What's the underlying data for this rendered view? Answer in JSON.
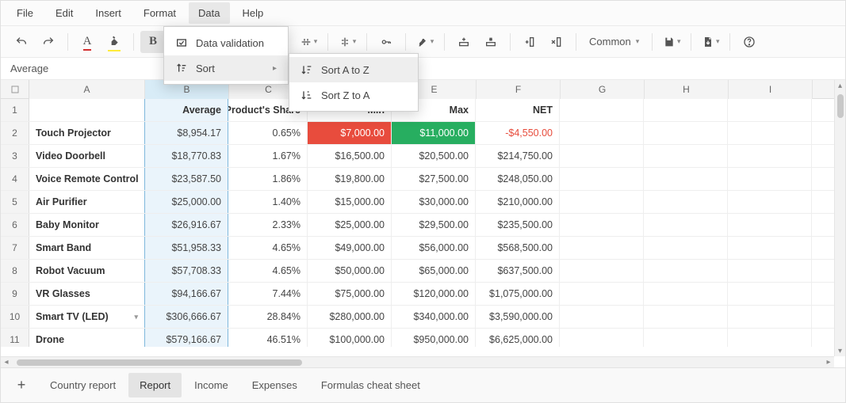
{
  "menubar": [
    "File",
    "Edit",
    "Insert",
    "Format",
    "Data",
    "Help"
  ],
  "menubar_active_index": 4,
  "toolbar": {
    "bold": "B",
    "common_label": "Common"
  },
  "formula_bar": "Average",
  "data_menu": {
    "validation": "Data validation",
    "sort": "Sort"
  },
  "sort_submenu": {
    "az": "Sort A to Z",
    "za": "Sort Z to A"
  },
  "columns": {
    "letters": [
      "A",
      "B",
      "C",
      "D",
      "E",
      "F",
      "G",
      "H",
      "I"
    ],
    "widths": [
      146,
      106,
      100,
      106,
      106,
      106,
      106,
      106,
      106
    ],
    "selected_index": 1
  },
  "header_row": [
    "",
    "Average",
    "Product's Share",
    "Min",
    "Max",
    "NET",
    "",
    "",
    ""
  ],
  "rows": [
    {
      "n": 1
    },
    {
      "n": 2,
      "a": "Touch Projector",
      "b": "$8,954.17",
      "c": "0.65%",
      "d": "$7,000.00",
      "e": "$11,000.00",
      "f": "-$4,550.00",
      "d_bg": "red",
      "e_bg": "green",
      "f_cls": "red-text"
    },
    {
      "n": 3,
      "a": "Video Doorbell",
      "b": "$18,770.83",
      "c": "1.67%",
      "d": "$16,500.00",
      "e": "$20,500.00",
      "f": "$214,750.00"
    },
    {
      "n": 4,
      "a": "Voice Remote Control",
      "b": "$23,587.50",
      "c": "1.86%",
      "d": "$19,800.00",
      "e": "$27,500.00",
      "f": "$248,050.00"
    },
    {
      "n": 5,
      "a": "Air Purifier",
      "b": "$25,000.00",
      "c": "1.40%",
      "d": "$15,000.00",
      "e": "$30,000.00",
      "f": "$210,000.00"
    },
    {
      "n": 6,
      "a": "Baby Monitor",
      "b": "$26,916.67",
      "c": "2.33%",
      "d": "$25,000.00",
      "e": "$29,500.00",
      "f": "$235,500.00"
    },
    {
      "n": 7,
      "a": "Smart Band",
      "b": "$51,958.33",
      "c": "4.65%",
      "d": "$49,000.00",
      "e": "$56,000.00",
      "f": "$568,500.00"
    },
    {
      "n": 8,
      "a": "Robot Vacuum",
      "b": "$57,708.33",
      "c": "4.65%",
      "d": "$50,000.00",
      "e": "$65,000.00",
      "f": "$637,500.00"
    },
    {
      "n": 9,
      "a": "VR Glasses",
      "b": "$94,166.67",
      "c": "7.44%",
      "d": "$75,000.00",
      "e": "$120,000.00",
      "f": "$1,075,000.00"
    },
    {
      "n": 10,
      "a": "Smart TV (LED)",
      "b": "$306,666.67",
      "c": "28.84%",
      "d": "$280,000.00",
      "e": "$340,000.00",
      "f": "$3,590,000.00",
      "dd": true
    },
    {
      "n": 11,
      "a": "Drone",
      "b": "$579,166.67",
      "c": "46.51%",
      "d": "$100,000.00",
      "e": "$950,000.00",
      "f": "$6,625,000.00"
    }
  ],
  "sheet_tabs": [
    "Country report",
    "Report",
    "Income",
    "Expenses",
    "Formulas cheat sheet"
  ],
  "sheet_active_index": 1,
  "colors": {
    "red_bg": "#e84c3d",
    "green_bg": "#27ae60",
    "neg_text": "#e74c3c",
    "sel_col_bg": "#eaf4fb",
    "sel_col_border": "#7fb8dc"
  }
}
